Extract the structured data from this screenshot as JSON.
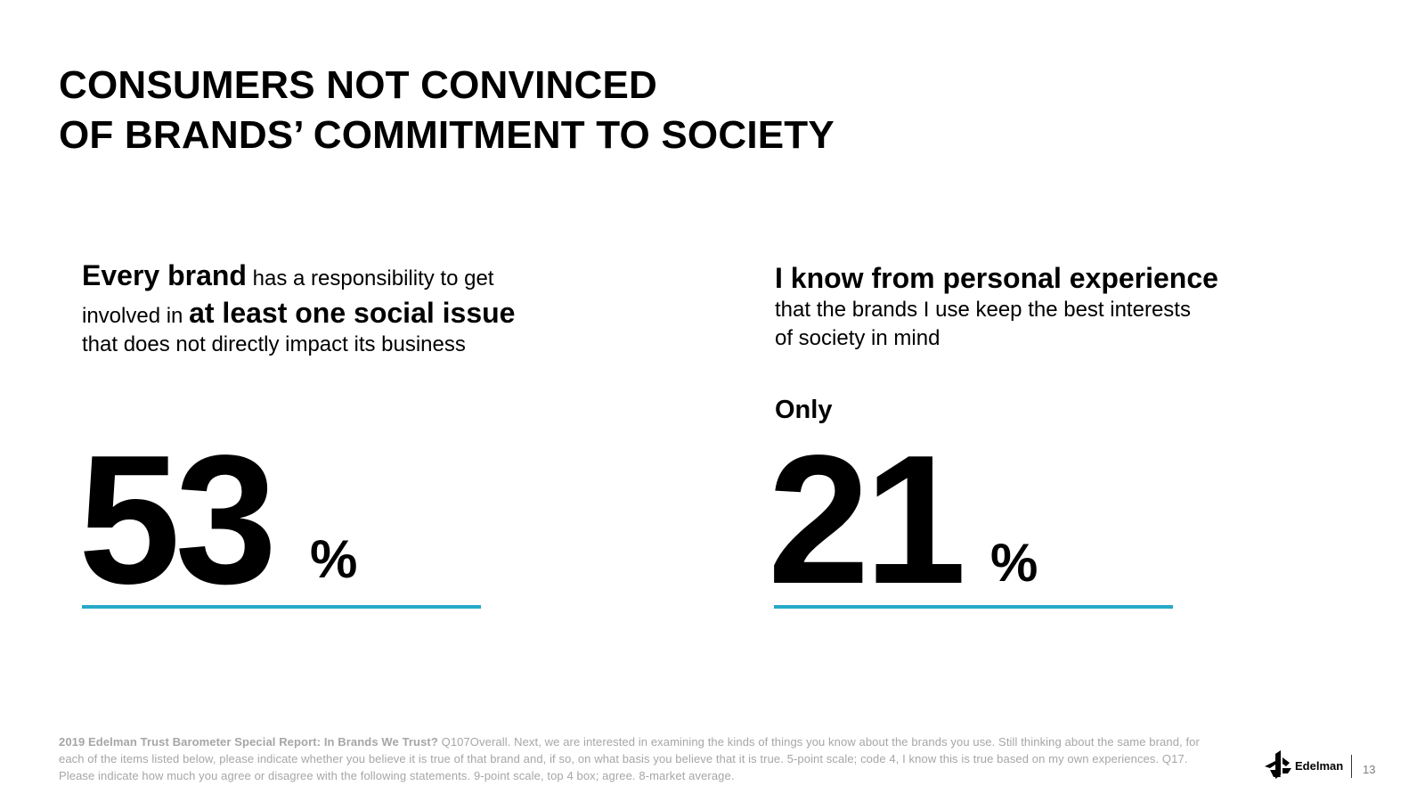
{
  "title": {
    "line1": "CONSUMERS NOT CONVINCED",
    "line2": "OF BRANDS’ COMMITMENT TO SOCIETY"
  },
  "left_stat": {
    "bold1": "Every brand",
    "text1": " has a responsibility to get",
    "text2": "involved in ",
    "bold2": "at least one social issue",
    "text3": "that does not directly impact its business",
    "value": "53",
    "unit": "%"
  },
  "right_stat": {
    "head": "I know from personal experience",
    "body1": "that the brands I use keep the best interests",
    "body2": "of society in mind",
    "prefix": "Only",
    "value": "21",
    "unit": "%"
  },
  "colors": {
    "accent": "#27a9c9",
    "footnote": "#a6a6a6"
  },
  "footnote": {
    "source": "2019 Edelman Trust Barometer Special Report: In Brands We Trust?",
    "text": " Q107Overall. Next, we are interested in examining the kinds of things you know about the brands you use. Still thinking about the same brand, for each of the items listed below, please indicate whether you believe it is true of that brand and, if so, on what basis you believe that it is true. 5-point scale; code 4, I know this is true based on my own experiences. Q17. Please indicate how much you agree or disagree with the following statements. 9-point scale, top 4 box; agree. 8-market average."
  },
  "logo": {
    "icon": "edelman-logo-icon",
    "text": "Edelman"
  },
  "page_number": "13"
}
